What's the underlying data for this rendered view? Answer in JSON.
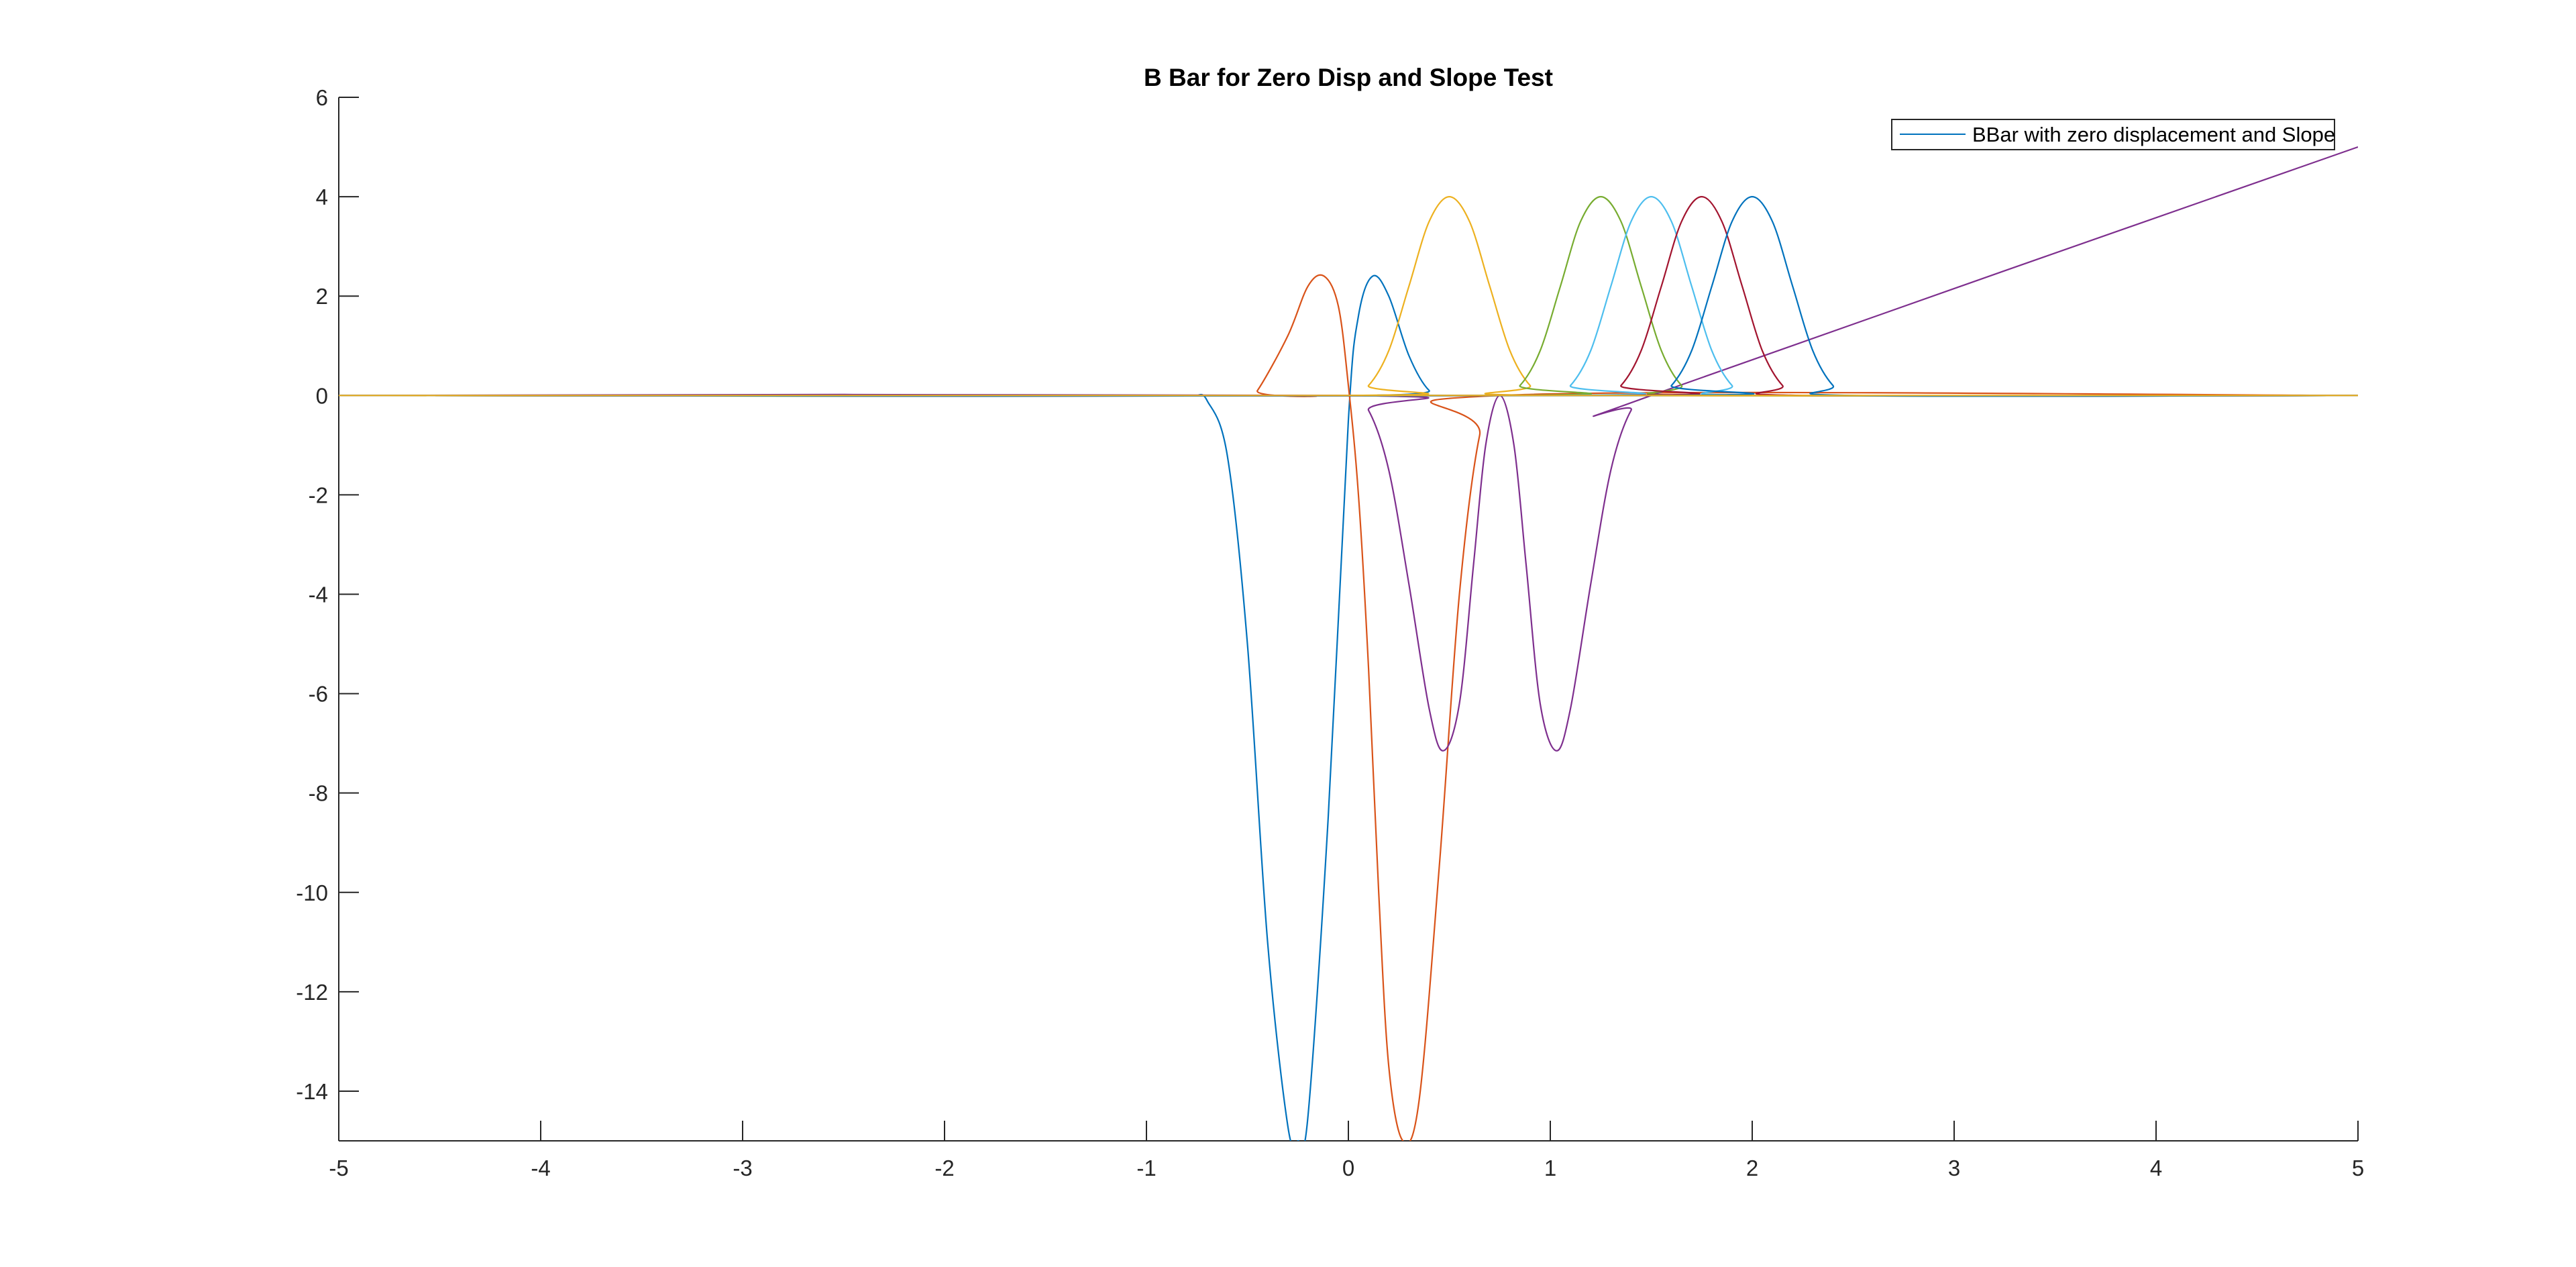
{
  "chart_data": {
    "type": "line",
    "title": "B Bar for Zero Disp and Slope Test",
    "xlabel": "",
    "ylabel": "",
    "xlim": [
      -5,
      5
    ],
    "ylim": [
      -15,
      6
    ],
    "xticks": [
      "-5",
      "-4",
      "-3",
      "-2",
      "-1",
      "0",
      "1",
      "2",
      "3",
      "4",
      "5"
    ],
    "yticks": [
      "6",
      "4",
      "2",
      "0",
      "-2",
      "-4",
      "-6",
      "-8",
      "-10",
      "-12",
      "-14"
    ],
    "grid": false,
    "legend": {
      "position": "top-right",
      "entries": [
        "BBar with zero displacement and Slope"
      ]
    },
    "series": [
      {
        "name": "BBar with zero displacement and Slope",
        "color": "#0072BD",
        "x": [
          -0.75,
          -0.7,
          -0.6,
          -0.5,
          -0.4,
          -0.3,
          -0.25,
          -0.2,
          -0.1,
          0.0,
          0.05,
          0.12,
          0.2,
          0.3,
          0.4,
          0.5,
          5.0
        ],
        "y": [
          0,
          -0.1,
          -1.2,
          -5.0,
          -11.0,
          -14.7,
          -15.0,
          -14.5,
          -8.5,
          -0.5,
          1.6,
          2.4,
          2.0,
          0.8,
          0.1,
          0,
          0
        ]
      },
      {
        "color": "#D95319",
        "x": [
          -5.0,
          -0.5,
          -0.45,
          -0.3,
          -0.2,
          -0.12,
          -0.05,
          0.0,
          0.05,
          0.1,
          0.15,
          0.2,
          0.27,
          0.35,
          0.45,
          0.55,
          0.65,
          0.75,
          5.0
        ],
        "y": [
          0,
          0,
          0.1,
          1.2,
          2.2,
          2.4,
          1.8,
          0.2,
          -2.0,
          -5.5,
          -10.0,
          -13.5,
          -15.0,
          -14.2,
          -9.5,
          -4.0,
          -0.8,
          0,
          0
        ]
      },
      {
        "color": "#EDB120",
        "x": [
          -5.0,
          0.0,
          0.1,
          0.2,
          0.3,
          0.4,
          0.5,
          0.6,
          0.7,
          0.8,
          0.9,
          1.0,
          5.0
        ],
        "y": [
          0,
          0,
          0.2,
          0.9,
          2.2,
          3.5,
          4.0,
          3.5,
          2.2,
          0.9,
          0.2,
          0,
          0
        ]
      },
      {
        "color": "#7E2F8E",
        "x": [
          -5.0,
          0.0,
          0.1,
          0.2,
          0.3,
          0.4,
          0.47,
          0.55,
          0.62,
          0.68,
          0.75,
          0.82,
          0.88,
          0.95,
          1.03,
          1.1,
          1.2,
          1.3,
          1.4,
          1.5,
          5.0
        ],
        "y": [
          0,
          0,
          -0.3,
          -1.5,
          -3.8,
          -6.3,
          -7.15,
          -6.2,
          -3.4,
          -1.0,
          0,
          -1.0,
          -3.4,
          -6.2,
          -7.15,
          -6.3,
          -3.8,
          -1.5,
          -0.3,
          0,
          5.0
        ]
      },
      {
        "color": "#77AC30",
        "x": [
          -5.0,
          0.75,
          0.85,
          0.95,
          1.05,
          1.15,
          1.25,
          1.35,
          1.45,
          1.55,
          1.65,
          1.75,
          5.0
        ],
        "y": [
          0,
          0,
          0.2,
          0.9,
          2.2,
          3.5,
          4.0,
          3.5,
          2.2,
          0.9,
          0.2,
          0,
          0
        ]
      },
      {
        "color": "#4DBEEE",
        "x": [
          -5.0,
          1.0,
          1.1,
          1.2,
          1.3,
          1.4,
          1.5,
          1.6,
          1.7,
          1.8,
          1.9,
          2.0,
          5.0
        ],
        "y": [
          0,
          0,
          0.2,
          0.9,
          2.2,
          3.5,
          4.0,
          3.5,
          2.2,
          0.9,
          0.2,
          0,
          0
        ]
      },
      {
        "color": "#A2142F",
        "x": [
          -5.0,
          1.25,
          1.35,
          1.45,
          1.55,
          1.65,
          1.75,
          1.85,
          1.95,
          2.05,
          2.15,
          2.25,
          5.0
        ],
        "y": [
          0,
          0,
          0.2,
          0.9,
          2.2,
          3.5,
          4.0,
          3.5,
          2.2,
          0.9,
          0.2,
          0,
          0
        ]
      },
      {
        "color": "#0072BD",
        "x": [
          -5.0,
          1.5,
          1.6,
          1.7,
          1.8,
          1.9,
          2.0,
          2.1,
          2.2,
          2.3,
          2.4,
          2.5,
          5.0
        ],
        "y": [
          0,
          0,
          0.2,
          0.9,
          2.2,
          3.5,
          4.0,
          3.5,
          2.2,
          0.9,
          0.2,
          0,
          0
        ]
      },
      {
        "color": "#EDB120",
        "x": [
          -5.0,
          5.0
        ],
        "y": [
          0,
          0
        ]
      }
    ]
  }
}
